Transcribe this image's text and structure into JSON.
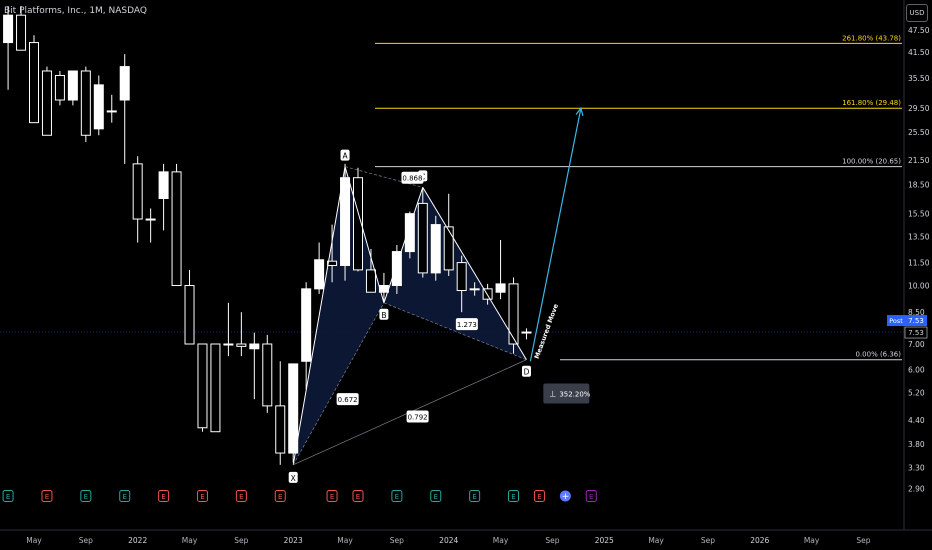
{
  "header": {
    "title": "Bit Platforms, Inc., 1M, NASDAQ"
  },
  "currency_button": "USD",
  "colors": {
    "background": "#000000",
    "candle_up": "#ffffff",
    "candle_down": "#ffffff",
    "wick": "#ffffff",
    "fib_gold": "#f5d90a",
    "fib_white": "#d1d4dc",
    "pattern_fill": "#0d1a3a",
    "arrow": "#3ab7e6",
    "price_tag": "#2962ff"
  },
  "chart_data": {
    "type": "candlestick",
    "title": "Bit Platforms, Inc., 1M, NASDAQ",
    "yscale": "log",
    "ylim": [
      2.4,
      55
    ],
    "y_ticks": [
      47.5,
      41.5,
      35.5,
      29.5,
      25.5,
      21.5,
      18.5,
      15.5,
      13.5,
      11.5,
      10.0,
      8.5,
      7.0,
      6.0,
      5.2,
      4.4,
      3.8,
      3.3,
      2.9
    ],
    "x_ticks": [
      {
        "label": "May",
        "month": 0
      },
      {
        "label": "Sep",
        "month": 4
      },
      {
        "label": "2022",
        "month": 8
      },
      {
        "label": "May",
        "month": 12
      },
      {
        "label": "Sep",
        "month": 16
      },
      {
        "label": "2023",
        "month": 20
      },
      {
        "label": "May",
        "month": 24
      },
      {
        "label": "Sep",
        "month": 28
      },
      {
        "label": "2024",
        "month": 32
      },
      {
        "label": "May",
        "month": 36
      },
      {
        "label": "Sep",
        "month": 40
      },
      {
        "label": "2025",
        "month": 44
      },
      {
        "label": "May",
        "month": 48
      },
      {
        "label": "Sep",
        "month": 52
      },
      {
        "label": "2026",
        "month": 56
      },
      {
        "label": "May",
        "month": 60
      },
      {
        "label": "Sep",
        "month": 64
      }
    ],
    "candles": [
      {
        "month": -2,
        "o": 44,
        "h": 55,
        "l": 33,
        "c": 52
      },
      {
        "month": -1,
        "o": 52,
        "h": 55,
        "l": 42,
        "c": 42
      },
      {
        "month": 0,
        "o": 44,
        "h": 46,
        "l": 27,
        "c": 27
      },
      {
        "month": 1,
        "o": 37,
        "h": 38,
        "l": 25,
        "c": 25
      },
      {
        "month": 2,
        "o": 36,
        "h": 37,
        "l": 30,
        "c": 31
      },
      {
        "month": 3,
        "o": 31,
        "h": 37,
        "l": 30,
        "c": 37
      },
      {
        "month": 4,
        "o": 37,
        "h": 38,
        "l": 24,
        "c": 25
      },
      {
        "month": 5,
        "o": 26,
        "h": 36,
        "l": 25,
        "c": 34
      },
      {
        "month": 6,
        "o": 29,
        "h": 32,
        "l": 27,
        "c": 29
      },
      {
        "month": 7,
        "o": 31,
        "h": 41,
        "l": 21,
        "c": 38
      },
      {
        "month": 8,
        "o": 21,
        "h": 22,
        "l": 13,
        "c": 15
      },
      {
        "month": 9,
        "o": 15,
        "h": 16,
        "l": 13,
        "c": 15
      },
      {
        "month": 10,
        "o": 17,
        "h": 21,
        "l": 14,
        "c": 20
      },
      {
        "month": 11,
        "o": 20,
        "h": 21,
        "l": 10,
        "c": 10
      },
      {
        "month": 12,
        "o": 10,
        "h": 11,
        "l": 7,
        "c": 7
      },
      {
        "month": 13,
        "o": 7,
        "h": 7,
        "l": 4.1,
        "c": 4.2
      },
      {
        "month": 14,
        "o": 7,
        "h": 7,
        "l": 4.1,
        "c": 4.1
      },
      {
        "month": 15,
        "o": 7,
        "h": 9,
        "l": 6.5,
        "c": 7
      },
      {
        "month": 16,
        "o": 7,
        "h": 8.5,
        "l": 6.5,
        "c": 6.9
      },
      {
        "month": 17,
        "o": 6.8,
        "h": 7.5,
        "l": 5,
        "c": 7
      },
      {
        "month": 18,
        "o": 7,
        "h": 7.4,
        "l": 4.6,
        "c": 4.8
      },
      {
        "month": 19,
        "o": 4.8,
        "h": 6.3,
        "l": 3.35,
        "c": 3.6
      },
      {
        "month": 20,
        "o": 3.6,
        "h": 6.2,
        "l": 3.4,
        "c": 6.2
      },
      {
        "month": 21,
        "o": 6.3,
        "h": 10.2,
        "l": 5.3,
        "c": 9.8
      },
      {
        "month": 22,
        "o": 9.8,
        "h": 13,
        "l": 9.5,
        "c": 11.7
      },
      {
        "month": 23,
        "o": 11.6,
        "h": 14.5,
        "l": 10.2,
        "c": 11.3
      },
      {
        "month": 24,
        "o": 11.3,
        "h": 21,
        "l": 10.3,
        "c": 19.3
      },
      {
        "month": 25,
        "o": 19.3,
        "h": 20.5,
        "l": 10.9,
        "c": 11
      },
      {
        "month": 26,
        "o": 11,
        "h": 12.5,
        "l": 9.8,
        "c": 9.6
      },
      {
        "month": 27,
        "o": 9.6,
        "h": 10.8,
        "l": 9,
        "c": 10
      },
      {
        "month": 28,
        "o": 10,
        "h": 12.8,
        "l": 9.5,
        "c": 12.3
      },
      {
        "month": 29,
        "o": 12.3,
        "h": 15.7,
        "l": 11.8,
        "c": 15.5
      },
      {
        "month": 30,
        "o": 16.5,
        "h": 18.2,
        "l": 10.5,
        "c": 10.8
      },
      {
        "month": 31,
        "o": 10.8,
        "h": 15.3,
        "l": 10.3,
        "c": 14.5
      },
      {
        "month": 32,
        "o": 14.3,
        "h": 17.5,
        "l": 10.6,
        "c": 11
      },
      {
        "month": 33,
        "o": 11.5,
        "h": 12,
        "l": 8.5,
        "c": 9.7
      },
      {
        "month": 34,
        "o": 9.8,
        "h": 10.2,
        "l": 9.4,
        "c": 9.8
      },
      {
        "month": 35,
        "o": 9.8,
        "h": 10.1,
        "l": 8.9,
        "c": 9.2
      },
      {
        "month": 36,
        "o": 9.6,
        "h": 13.2,
        "l": 9.2,
        "c": 10.1
      },
      {
        "month": 37,
        "o": 10.1,
        "h": 10.5,
        "l": 6.6,
        "c": 7.0
      },
      {
        "month": 38,
        "o": 7.5,
        "h": 7.7,
        "l": 7.2,
        "c": 7.53
      }
    ],
    "fib_levels": [
      {
        "label": "261.80% (43.78)",
        "value": 43.78,
        "color": "#f5d90a"
      },
      {
        "label": "161.80% (29.48)",
        "value": 29.48,
        "color": "#f5d90a"
      },
      {
        "label": "100.00% (20.65)",
        "value": 20.65,
        "color": "#d1d4dc"
      },
      {
        "label": "0.00% (6.36)",
        "value": 6.36,
        "color": "#d1d4dc"
      }
    ],
    "pattern_points": [
      {
        "label": "X",
        "month": 20,
        "value": 3.35
      },
      {
        "label": "A",
        "month": 24,
        "value": 20.65
      },
      {
        "label": "B",
        "month": 27,
        "value": 9.0
      },
      {
        "label": "C",
        "month": 30,
        "value": 18.2
      },
      {
        "label": "D",
        "month": 38,
        "value": 6.36
      }
    ],
    "ratios": [
      {
        "label": "0.672",
        "month": 24.2,
        "value": 5.0
      },
      {
        "label": "0.868",
        "month": 29.2,
        "value": 19.3
      },
      {
        "label": "1.273",
        "month": 33.4,
        "value": 7.9
      },
      {
        "label": "0.792",
        "month": 29.6,
        "value": 4.5
      }
    ],
    "measured_move": {
      "label": "Measured Move",
      "from_month": 38.3,
      "from_value": 6.3,
      "to_month": 42.2,
      "to_value": 29.5
    },
    "percent_badge": "352.20%",
    "current_price": {
      "label": "Post",
      "value": "7.53",
      "second_value": "7.53"
    },
    "event_markers": [
      {
        "month": -2,
        "type": "E",
        "color": "#26a69a"
      },
      {
        "month": 1,
        "type": "E",
        "color": "#ef5350"
      },
      {
        "month": 4,
        "type": "E",
        "color": "#26a69a"
      },
      {
        "month": 7,
        "type": "E",
        "color": "#26a69a"
      },
      {
        "month": 10,
        "type": "E",
        "color": "#ef5350"
      },
      {
        "month": 13,
        "type": "E",
        "color": "#ef5350"
      },
      {
        "month": 16,
        "type": "E",
        "color": "#ef5350"
      },
      {
        "month": 19,
        "type": "E",
        "color": "#ef5350"
      },
      {
        "month": 23,
        "type": "E",
        "color": "#ef5350"
      },
      {
        "month": 25,
        "type": "E",
        "color": "#ef5350"
      },
      {
        "month": 28,
        "type": "E",
        "color": "#26a69a"
      },
      {
        "month": 31,
        "type": "E",
        "color": "#26a69a"
      },
      {
        "month": 34,
        "type": "E",
        "color": "#26a69a"
      },
      {
        "month": 37,
        "type": "E",
        "color": "#26a69a"
      },
      {
        "month": 39,
        "type": "E",
        "color": "#ef5350"
      },
      {
        "month": 41,
        "type": "plus",
        "color": "#5d7bff"
      },
      {
        "month": 43,
        "type": "E",
        "color": "#9c27b0"
      }
    ]
  }
}
